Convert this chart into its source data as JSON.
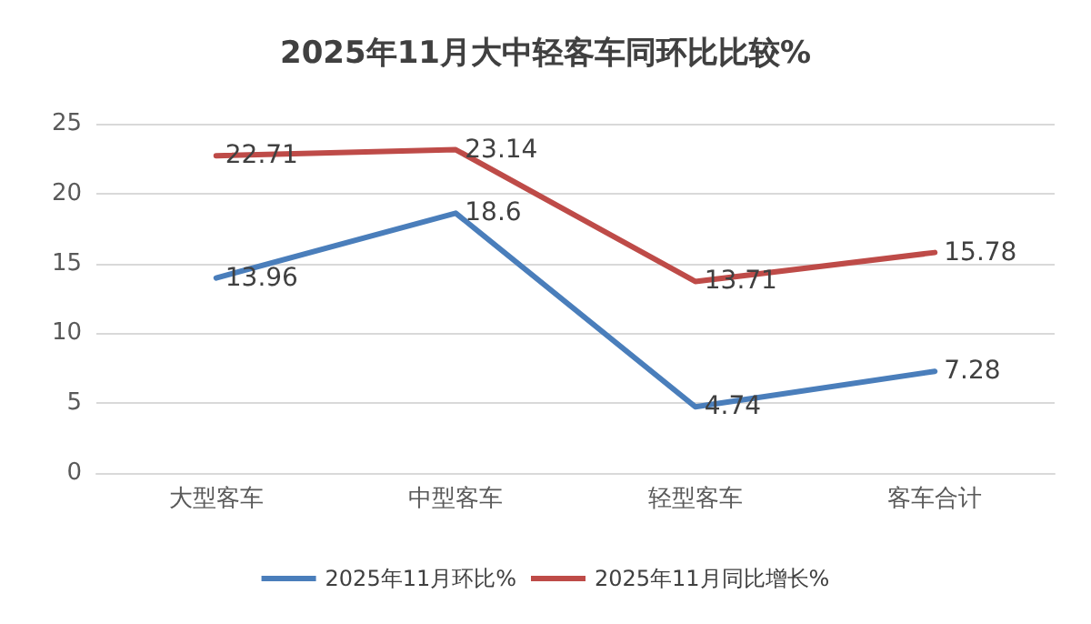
{
  "chart_data": {
    "type": "line",
    "title": "2025年11月大中轻客车同环比比较%",
    "categories": [
      "大型客车",
      "中型客车",
      "轻型客车",
      "客车合计"
    ],
    "series": [
      {
        "name": "2025年11月环比%",
        "color": "#4a7ebb",
        "values": [
          13.96,
          18.6,
          4.74,
          7.28
        ]
      },
      {
        "name": "2025年11月同比增长%",
        "color": "#be4b48",
        "values": [
          22.71,
          23.14,
          13.71,
          15.78
        ]
      }
    ],
    "ylim": [
      0,
      25
    ],
    "yticks": [
      0,
      5,
      10,
      15,
      20,
      25
    ],
    "grid": "y",
    "legend": "bottom",
    "data_labels": true,
    "marker": "none",
    "line_style": "solid"
  }
}
